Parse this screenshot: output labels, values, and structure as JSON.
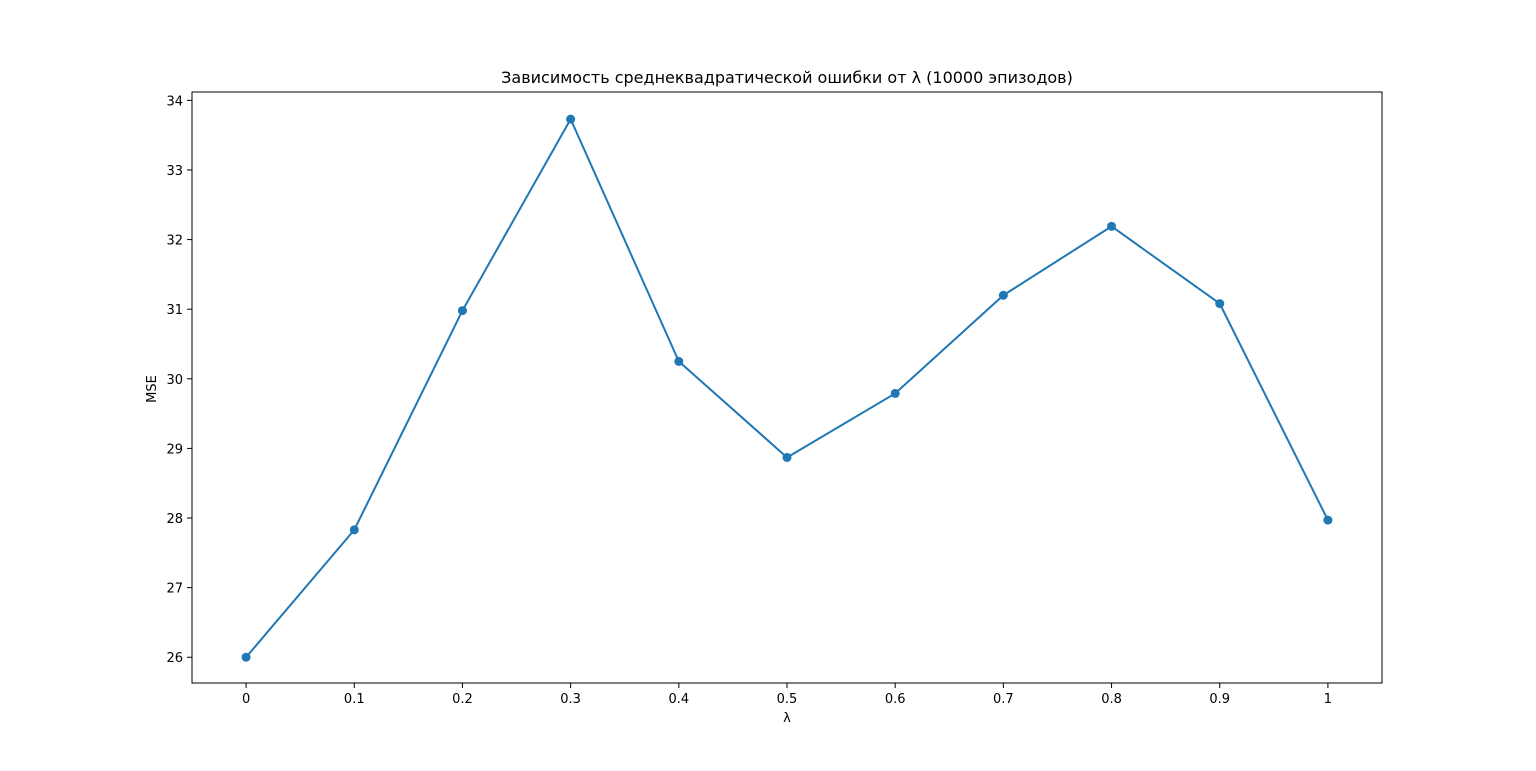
{
  "chart_data": {
    "type": "line",
    "title": "Зависимость среднеквадратической ошибки от λ (10000 эпизодов)",
    "xlabel": "λ",
    "ylabel": "MSE",
    "x": [
      0,
      0.1,
      0.2,
      0.3,
      0.4,
      0.5,
      0.6,
      0.7,
      0.8,
      0.9,
      1
    ],
    "x_tick_labels": [
      "0",
      "0.1",
      "0.2",
      "0.3",
      "0.4",
      "0.5",
      "0.6",
      "0.7",
      "0.8",
      "0.9",
      "1"
    ],
    "series": [
      {
        "values": [
          26.0,
          27.83,
          30.98,
          33.73,
          30.25,
          28.87,
          29.79,
          31.2,
          32.19,
          31.08,
          27.97
        ],
        "color": "#1f77b4",
        "marker": "circle"
      }
    ],
    "y_ticks": [
      26,
      27,
      28,
      29,
      30,
      31,
      32,
      33,
      34
    ],
    "xlim": [
      -0.05,
      1.05
    ],
    "ylim": [
      25.63,
      34.12
    ],
    "grid": false,
    "legend": "none"
  }
}
